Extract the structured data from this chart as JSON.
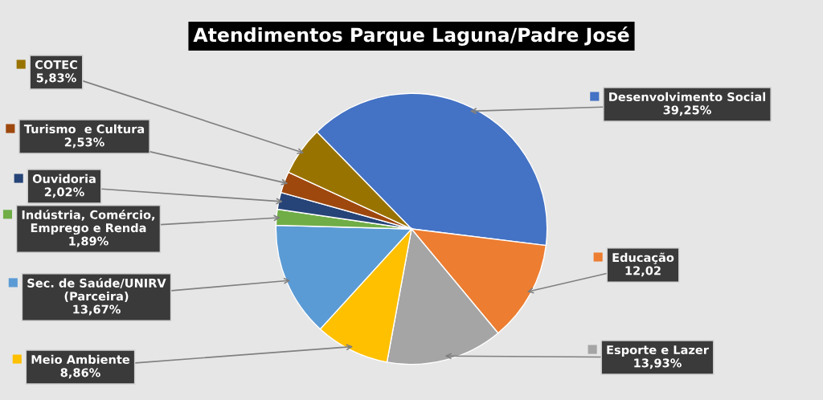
{
  "chart_data": {
    "type": "pie",
    "title": "Atendimentos Parque Laguna/Padre José",
    "categories": [
      "Desenvolvimento Social",
      "Educação",
      "Esporte e Lazer",
      "Meio Ambiente",
      "Sec. de Saúde/UNIRV\n(Parceira)",
      "Indústria, Comércio,\nEmprego e Renda",
      "Ouvidoria",
      "Turismo  e Cultura",
      "COTEC"
    ],
    "values": [
      39.25,
      12.02,
      13.93,
      8.86,
      13.67,
      1.89,
      2.02,
      2.53,
      5.83
    ],
    "value_labels": [
      "39,25%",
      "12,02",
      "13,93%",
      "8,86%",
      "13,67%",
      "1,89%",
      "2,02%",
      "2,53%",
      "5,83%"
    ],
    "legend": "left",
    "colors": [
      "#4472c4",
      "#ed7d31",
      "#a5a5a5",
      "#ffc000",
      "#5b9bd5",
      "#70ad47",
      "#264478",
      "#9e480e",
      "#997300"
    ]
  }
}
